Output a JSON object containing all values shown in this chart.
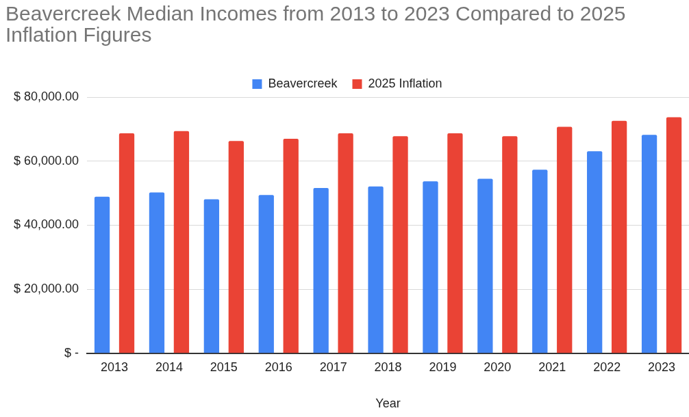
{
  "chart_data": {
    "type": "bar",
    "title": "Beavercreek Median Incomes from 2013 to 2023 Compared to 2025 Inflation Figures",
    "xlabel": "Year",
    "categories": [
      "2013",
      "2014",
      "2015",
      "2016",
      "2017",
      "2018",
      "2019",
      "2020",
      "2021",
      "2022",
      "2023"
    ],
    "series": [
      {
        "name": "Beavercreek",
        "color": "#4285f4",
        "values": [
          48900,
          50200,
          48100,
          49400,
          51600,
          52100,
          53700,
          54500,
          57300,
          63100,
          68200
        ]
      },
      {
        "name": "2025 Inflation",
        "color": "#ea4335",
        "values": [
          68700,
          69400,
          66300,
          67000,
          68700,
          67800,
          68700,
          67800,
          70700,
          72600,
          73700
        ]
      }
    ],
    "ylim": [
      0,
      80000
    ],
    "yticks": [
      {
        "value": 0,
        "label": "$ -"
      },
      {
        "value": 20000,
        "label": "$ 20,000.00"
      },
      {
        "value": 40000,
        "label": "$ 40,000.00"
      },
      {
        "value": 60000,
        "label": "$ 60,000.00"
      },
      {
        "value": 80000,
        "label": "$ 80,000.00"
      }
    ],
    "grid": "y",
    "legend": "top"
  }
}
